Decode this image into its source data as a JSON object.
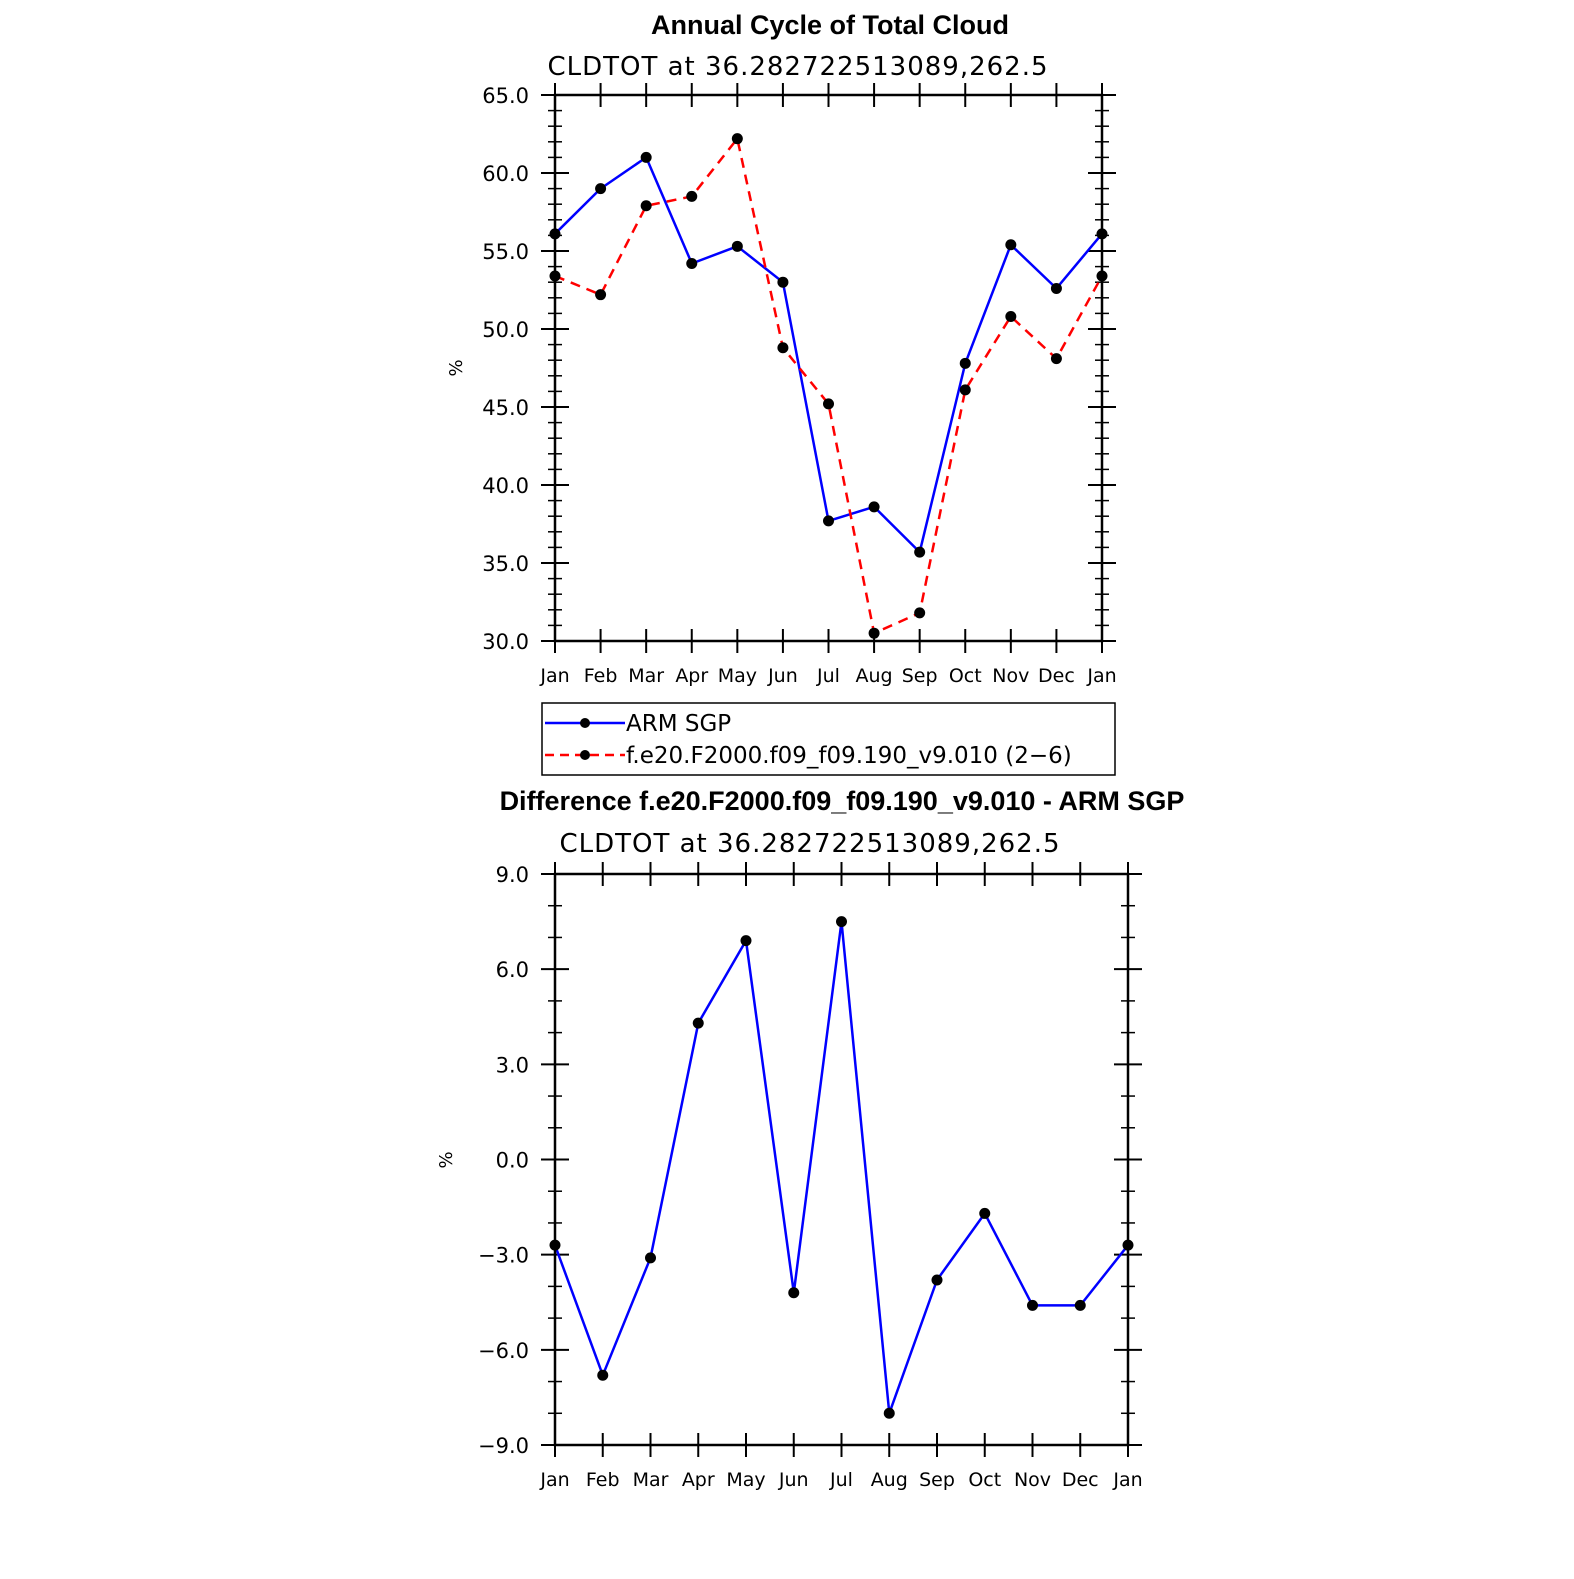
{
  "chart_data": [
    {
      "type": "line",
      "title": "Annual Cycle of Total Cloud",
      "subtitle": "CLDTOT at 36.282722513089,262.5",
      "xlabel": "",
      "ylabel": "%",
      "categories": [
        "Jan",
        "Feb",
        "Mar",
        "Apr",
        "May",
        "Jun",
        "Jul",
        "Aug",
        "Sep",
        "Oct",
        "Nov",
        "Dec",
        "Jan"
      ],
      "ylim": [
        30,
        65
      ],
      "yticks": [
        "30.0",
        "35.0",
        "40.0",
        "45.0",
        "50.0",
        "55.0",
        "60.0",
        "65.0"
      ],
      "grid": false,
      "legend_placement": "below",
      "series": [
        {
          "name": "ARM SGP",
          "color": "#0000ff",
          "dash": "solid",
          "values": [
            56.1,
            59.0,
            61.0,
            54.2,
            55.3,
            53.0,
            37.7,
            38.6,
            35.7,
            47.8,
            55.4,
            52.6,
            56.1
          ]
        },
        {
          "name": "f.e20.F2000.f09_f09.190_v9.010 (2−6)",
          "color": "#ff0000",
          "dash": "dashed",
          "values": [
            53.4,
            52.2,
            57.9,
            58.5,
            62.2,
            48.8,
            45.2,
            30.5,
            31.8,
            46.1,
            50.8,
            48.1,
            53.4
          ]
        }
      ]
    },
    {
      "type": "line",
      "title": "Difference f.e20.F2000.f09_f09.190_v9.010 - ARM SGP",
      "subtitle": "CLDTOT at 36.282722513089,262.5",
      "xlabel": "",
      "ylabel": "%",
      "categories": [
        "Jan",
        "Feb",
        "Mar",
        "Apr",
        "May",
        "Jun",
        "Jul",
        "Aug",
        "Sep",
        "Oct",
        "Nov",
        "Dec",
        "Jan"
      ],
      "ylim": [
        -9,
        9
      ],
      "yticks": [
        "−9.0",
        "−6.0",
        "−3.0",
        "0.0",
        "3.0",
        "6.0",
        "9.0"
      ],
      "grid": false,
      "series": [
        {
          "color": "#0000ff",
          "dash": "solid",
          "values": [
            -2.7,
            -6.8,
            -3.1,
            4.3,
            6.9,
            -4.2,
            7.5,
            -8.0,
            -3.8,
            -1.7,
            -4.6,
            -4.6,
            -2.7
          ]
        }
      ]
    }
  ]
}
